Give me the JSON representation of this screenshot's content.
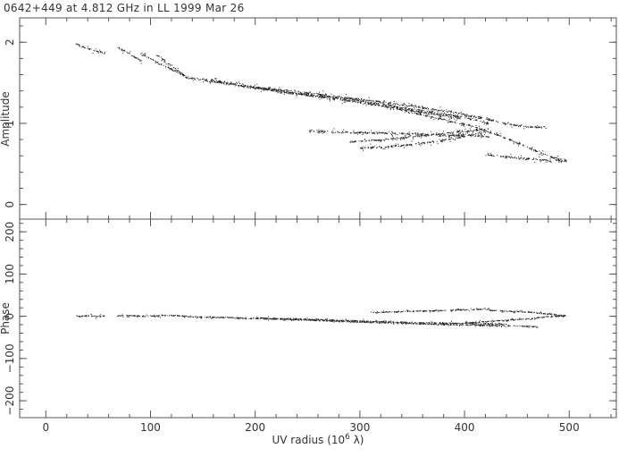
{
  "chart_data": [
    {
      "type": "scatter",
      "panel": "amplitude",
      "title": "0642+449 at 4.812 GHz in LL  1999 Mar 26",
      "xlabel": "UV radius  (10^6 λ)",
      "xlabel_parts": {
        "main": "UV radius  (10",
        "exp": "6",
        "unit": " λ)"
      },
      "ylabel": "Amplitude",
      "xlim": [
        -25,
        545
      ],
      "ylim": [
        -0.18,
        2.3
      ],
      "xticks": [
        "0",
        "100",
        "200",
        "300",
        "400",
        "500"
      ],
      "yticks": [
        "0",
        "1",
        "2"
      ],
      "grid": false,
      "tracks": [
        {
          "x": [
            28,
            33,
            38,
            44,
            50,
            56
          ],
          "y": [
            1.98,
            1.96,
            1.93,
            1.91,
            1.89,
            1.87
          ]
        },
        {
          "x": [
            68,
            74,
            80,
            86,
            92
          ],
          "y": [
            1.94,
            1.9,
            1.86,
            1.81,
            1.77
          ]
        },
        {
          "x": [
            90,
            100,
            110,
            120,
            128,
            134
          ],
          "y": [
            1.87,
            1.8,
            1.73,
            1.67,
            1.62,
            1.57
          ]
        },
        {
          "x": [
            105,
            112,
            119,
            126,
            134
          ],
          "y": [
            1.86,
            1.79,
            1.72,
            1.65,
            1.58
          ]
        },
        {
          "x": [
            134,
            170,
            210,
            250,
            290,
            330,
            360,
            380,
            395
          ],
          "y": [
            1.57,
            1.5,
            1.42,
            1.35,
            1.28,
            1.2,
            1.14,
            1.1,
            1.07
          ]
        },
        {
          "x": [
            150,
            200,
            250,
            300,
            340,
            370,
            390,
            410,
            423
          ],
          "y": [
            1.55,
            1.45,
            1.36,
            1.28,
            1.2,
            1.14,
            1.1,
            1.05,
            1.0
          ]
        },
        {
          "x": [
            200,
            250,
            300,
            350,
            390,
            420,
            440,
            460,
            478
          ],
          "y": [
            1.45,
            1.38,
            1.3,
            1.22,
            1.14,
            1.06,
            1.0,
            0.96,
            0.95
          ]
        },
        {
          "x": [
            250,
            300,
            340,
            380,
            410,
            423
          ],
          "y": [
            0.91,
            0.89,
            0.88,
            0.86,
            0.85,
            0.84
          ]
        },
        {
          "x": [
            290,
            320,
            350,
            380,
            410,
            423
          ],
          "y": [
            0.78,
            0.8,
            0.84,
            0.88,
            0.92,
            0.94
          ]
        },
        {
          "x": [
            300,
            330,
            360,
            390,
            420
          ],
          "y": [
            0.7,
            0.72,
            0.76,
            0.82,
            0.9
          ]
        },
        {
          "x": [
            330,
            370,
            410,
            440,
            465,
            485,
            497
          ],
          "y": [
            1.2,
            1.08,
            0.96,
            0.82,
            0.68,
            0.58,
            0.55
          ]
        },
        {
          "x": [
            420,
            440,
            460,
            480,
            497
          ],
          "y": [
            0.62,
            0.59,
            0.57,
            0.55,
            0.54
          ]
        }
      ],
      "spread": 0.05
    },
    {
      "type": "scatter",
      "panel": "phase",
      "ylabel": "Phase",
      "xlim": [
        -25,
        545
      ],
      "ylim": [
        -240,
        230
      ],
      "xticks": [
        "0",
        "100",
        "200",
        "300",
        "400",
        "500"
      ],
      "yticks": [
        "−200",
        "−100",
        "0",
        "100",
        "200"
      ],
      "ytick_values": [
        -200,
        -100,
        0,
        100,
        200
      ],
      "grid": false,
      "tracks": [
        {
          "x": [
            28,
            33,
            38,
            44,
            50,
            56
          ],
          "y": [
            2,
            0,
            3,
            1,
            0,
            2
          ]
        },
        {
          "x": [
            68,
            80,
            92,
            104,
            116,
            128,
            134
          ],
          "y": [
            2,
            3,
            1,
            2,
            3,
            2,
            1
          ]
        },
        {
          "x": [
            134,
            170,
            210,
            250,
            290,
            330,
            370,
            410,
            450,
            470
          ],
          "y": [
            0,
            -2,
            -5,
            -8,
            -12,
            -15,
            -18,
            -20,
            -22,
            -24
          ]
        },
        {
          "x": [
            200,
            250,
            300,
            350,
            400,
            440
          ],
          "y": [
            -3,
            -6,
            -10,
            -14,
            -16,
            -18
          ]
        },
        {
          "x": [
            310,
            340,
            370,
            390,
            410,
            423
          ],
          "y": [
            10,
            12,
            14,
            16,
            17,
            18
          ]
        },
        {
          "x": [
            423,
            450,
            470,
            485,
            497
          ],
          "y": [
            15,
            12,
            9,
            5,
            2
          ]
        },
        {
          "x": [
            400,
            430,
            460,
            480,
            497
          ],
          "y": [
            -15,
            -10,
            -5,
            0,
            3
          ]
        }
      ],
      "spread": 5
    }
  ]
}
